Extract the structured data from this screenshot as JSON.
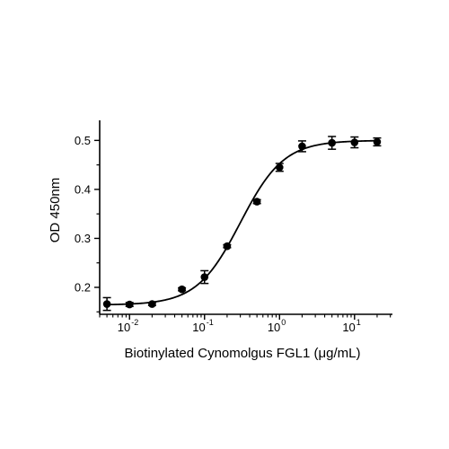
{
  "chart_data": {
    "type": "scatter",
    "xscale": "log",
    "xlim": [
      0.004,
      32
    ],
    "ylim": [
      0.145,
      0.53
    ],
    "xlabel": "Biotinylated Cynomolgus FGL1 (μg/mL)",
    "ylabel": "OD 450nm",
    "grid": false,
    "legend": "none",
    "x_ticks": [
      {
        "value": 0.01,
        "base": "10",
        "exp": "-2"
      },
      {
        "value": 0.1,
        "base": "10",
        "exp": "-1"
      },
      {
        "value": 1,
        "base": "10",
        "exp": "0"
      },
      {
        "value": 10,
        "base": "10",
        "exp": "1"
      }
    ],
    "y_ticks": [
      {
        "value": 0.2,
        "label": "0.2"
      },
      {
        "value": 0.3,
        "label": "0.3"
      },
      {
        "value": 0.4,
        "label": "0.4"
      },
      {
        "value": 0.5,
        "label": "0.5"
      }
    ],
    "points": [
      {
        "x": 0.005,
        "y": 0.166,
        "err": 0.013
      },
      {
        "x": 0.01,
        "y": 0.165,
        "err": 0.004
      },
      {
        "x": 0.02,
        "y": 0.166,
        "err": 0.003
      },
      {
        "x": 0.05,
        "y": 0.196,
        "err": 0.003
      },
      {
        "x": 0.1,
        "y": 0.221,
        "err": 0.013
      },
      {
        "x": 0.2,
        "y": 0.284,
        "err": 0.003
      },
      {
        "x": 0.5,
        "y": 0.375,
        "err": 0.004
      },
      {
        "x": 1,
        "y": 0.445,
        "err": 0.008
      },
      {
        "x": 2,
        "y": 0.488,
        "err": 0.011
      },
      {
        "x": 5,
        "y": 0.495,
        "err": 0.013
      },
      {
        "x": 10,
        "y": 0.496,
        "err": 0.011
      },
      {
        "x": 20,
        "y": 0.497,
        "err": 0.008
      }
    ],
    "fit": {
      "model": "4PL",
      "bottom": 0.164,
      "top": 0.5,
      "ec50": 0.3,
      "hill": 1.5
    },
    "colors": {
      "marker": "#000000",
      "line": "#000000",
      "axis": "#000000"
    }
  }
}
